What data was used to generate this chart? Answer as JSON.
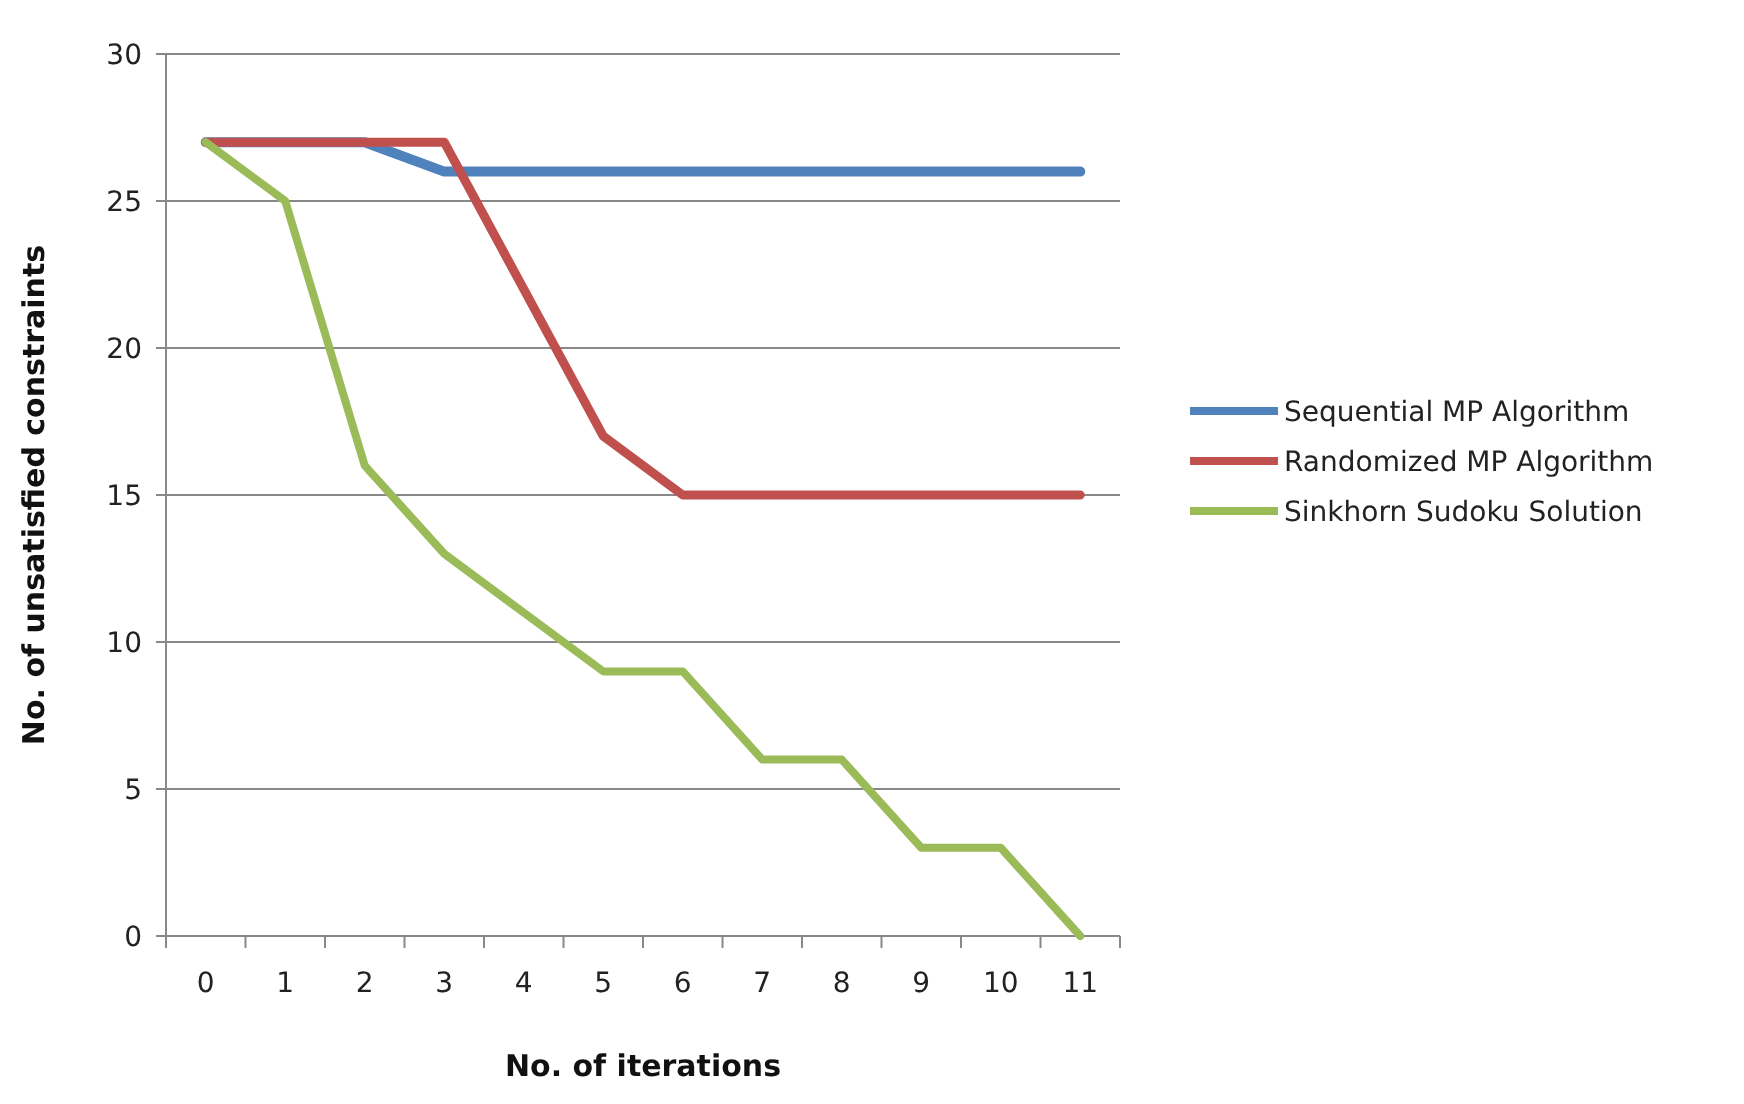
{
  "chart_data": {
    "type": "line",
    "xlabel": "No. of iterations",
    "ylabel": "No. of unsatisfied constraints",
    "categories": [
      "0",
      "1",
      "2",
      "3",
      "4",
      "5",
      "6",
      "7",
      "8",
      "9",
      "10",
      "11"
    ],
    "series": [
      {
        "name": "Sequential MP Algorithm",
        "color": "#4f81bd",
        "values": [
          27,
          27,
          27,
          26,
          26,
          26,
          26,
          26,
          26,
          26,
          26,
          26
        ]
      },
      {
        "name": "Randomized MP Algorithm",
        "color": "#c0504d",
        "values": [
          27,
          27,
          27,
          27,
          22,
          17,
          15,
          15,
          15,
          15,
          15,
          15
        ]
      },
      {
        "name": "Sinkhorn Sudoku Solution",
        "color": "#9bbb59",
        "values": [
          27,
          25,
          16,
          13,
          11,
          9,
          9,
          6,
          6,
          3,
          3,
          0
        ]
      }
    ],
    "ylim": [
      0,
      30
    ],
    "yticks": [
      0,
      5,
      10,
      15,
      20,
      25,
      30
    ],
    "grid": "y",
    "legend": "right"
  }
}
